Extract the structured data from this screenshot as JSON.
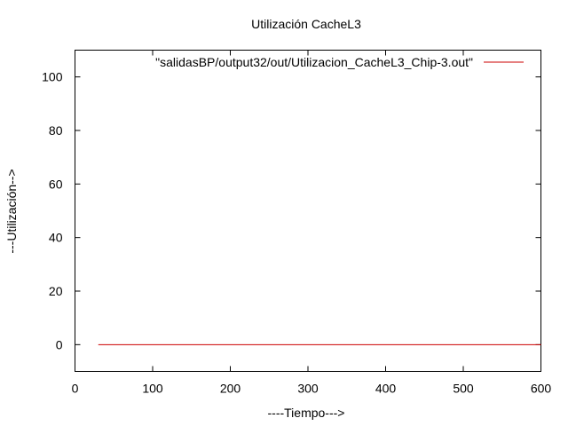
{
  "chart_data": {
    "type": "line",
    "title": "Utilización CacheL3",
    "xlabel": "----Tiempo--->",
    "ylabel": "---Utilización-->",
    "xlim": [
      0,
      600
    ],
    "ylim": [
      -10,
      110
    ],
    "xticks": [
      0,
      100,
      200,
      300,
      400,
      500,
      600
    ],
    "yticks": [
      0,
      20,
      40,
      60,
      80,
      100
    ],
    "grid": false,
    "legend_position": "top-right",
    "series": [
      {
        "name": "\"salidasBP/output32/out/Utilizacion_CacheL3_Chip-3.out\"",
        "color": "#cc0000",
        "x": [
          30,
          600
        ],
        "y": [
          0,
          0
        ]
      }
    ]
  }
}
